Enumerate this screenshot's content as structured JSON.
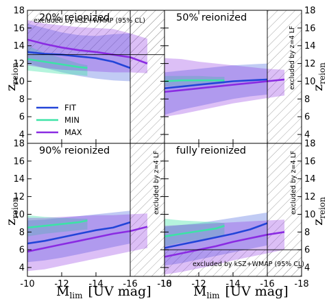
{
  "colors": {
    "FIT": "#2244d8",
    "MIN": "#3ce3a6",
    "MAX": "#8a2be2"
  },
  "axes": {
    "xlabel_main": "M",
    "xlabel_sub": "lim",
    "xlabel_unit": "[UV mag]",
    "ylabel_main": "z",
    "ylabel_sub": "reion",
    "xlim": [
      -10,
      -18
    ],
    "ylim": [
      3,
      18
    ],
    "xticks": [
      -10,
      -12,
      -14,
      -16,
      -18
    ],
    "yticks": [
      4,
      6,
      8,
      10,
      12,
      14,
      16,
      18
    ]
  },
  "legend": {
    "entries": [
      "FIT",
      "MIN",
      "MAX"
    ]
  },
  "chart_data": [
    {
      "type": "area",
      "title": "20% reionized",
      "annotations": [
        "excluded by kSZ+WMAP (95% CL)"
      ],
      "excluded": {
        "hline_z": 13.0,
        "hatch_above_z": 13.0,
        "vline_mlim": -16.0,
        "hatch_beyond_mlim": -16.0
      },
      "series": [
        {
          "name": "FIT",
          "x": [
            -10,
            -11,
            -12,
            -13,
            -14,
            -15,
            -16
          ],
          "y": [
            13.3,
            13.1,
            13.0,
            12.8,
            12.6,
            12.2,
            11.5
          ],
          "band_outer": {
            "upper": [
              16.5,
              16.0,
              15.5,
              15.2,
              15.1,
              15.3,
              15.4
            ],
            "lower": [
              12.0,
              11.5,
              11.0,
              10.6,
              10.3,
              10.1,
              10.0
            ]
          }
        },
        {
          "name": "MIN",
          "x": [
            -10,
            -11,
            -12,
            -13,
            -13.5
          ],
          "y": [
            12.5,
            12.2,
            11.9,
            11.6,
            11.5
          ],
          "band_outer": {
            "upper": [
              14.0,
              13.2,
              12.6,
              12.0,
              11.8
            ],
            "lower": [
              11.2,
              11.0,
              10.8,
              10.7,
              10.6
            ]
          }
        },
        {
          "name": "MAX",
          "x": [
            -10,
            -11,
            -12,
            -13,
            -14,
            -15,
            -16,
            -17
          ],
          "y": [
            14.7,
            14.2,
            13.8,
            13.5,
            13.3,
            13.0,
            12.7,
            12.0
          ],
          "band_outer": {
            "upper": [
              16.9,
              16.5,
              16.3,
              16.1,
              16.0,
              15.9,
              15.4,
              14.8
            ],
            "lower": [
              11.8,
              11.5,
              11.3,
              11.2,
              11.1,
              11.0,
              11.0,
              10.9
            ]
          }
        }
      ]
    },
    {
      "type": "area",
      "title": "50% reionized",
      "annotations": [
        "excluded by z=4 LF"
      ],
      "excluded": {
        "vline_mlim": -16.0,
        "hatch_beyond_mlim": -16.0
      },
      "series": [
        {
          "name": "FIT",
          "x": [
            -10,
            -11,
            -12,
            -13,
            -14,
            -15,
            -16
          ],
          "y": [
            9.2,
            9.4,
            9.6,
            9.8,
            10.0,
            10.1,
            10.2
          ],
          "band_outer": {
            "upper": [
              11.0,
              11.2,
              11.4,
              11.6,
              11.8,
              11.9,
              12.0
            ],
            "lower": [
              6.2,
              6.8,
              7.2,
              7.6,
              8.0,
              8.3,
              8.5
            ]
          }
        },
        {
          "name": "MIN",
          "x": [
            -10,
            -11,
            -12,
            -13,
            -13.5
          ],
          "y": [
            10.0,
            10.1,
            10.1,
            10.1,
            10.1
          ],
          "band_outer": {
            "upper": [
              10.6,
              10.6,
              10.6,
              10.5,
              10.5
            ],
            "lower": [
              9.4,
              9.5,
              9.6,
              9.7,
              9.7
            ]
          }
        },
        {
          "name": "MAX",
          "x": [
            -10,
            -11,
            -12,
            -13,
            -14,
            -15,
            -16,
            -17
          ],
          "y": [
            8.8,
            9.0,
            9.2,
            9.4,
            9.6,
            9.8,
            10.0,
            10.2
          ],
          "band_outer": {
            "upper": [
              12.6,
              12.5,
              12.2,
              12.0,
              11.8,
              11.6,
              11.4,
              11.3
            ],
            "lower": [
              6.0,
              6.3,
              6.7,
              7.1,
              7.5,
              7.8,
              8.1,
              8.4
            ]
          }
        }
      ]
    },
    {
      "type": "area",
      "title": "90% reionized",
      "annotations": [
        "excluded by z=4 LF"
      ],
      "excluded": {
        "vline_mlim": -16.0,
        "hatch_beyond_mlim": -16.0
      },
      "series": [
        {
          "name": "FIT",
          "x": [
            -10,
            -11,
            -12,
            -13,
            -14,
            -15,
            -16
          ],
          "y": [
            6.7,
            7.0,
            7.4,
            7.8,
            8.2,
            8.5,
            9.1
          ],
          "band_outer": {
            "upper": [
              9.3,
              9.4,
              9.6,
              9.8,
              10.0,
              10.2,
              10.4
            ],
            "lower": [
              4.6,
              4.8,
              5.1,
              5.5,
              5.9,
              6.3,
              6.7
            ]
          }
        },
        {
          "name": "MIN",
          "x": [
            -10,
            -11,
            -12,
            -13,
            -13.5
          ],
          "y": [
            8.5,
            8.7,
            8.9,
            9.1,
            9.3
          ],
          "band_outer": {
            "upper": [
              9.9,
              9.7,
              9.6,
              9.5,
              9.5
            ],
            "lower": [
              7.5,
              7.8,
              8.0,
              8.2,
              8.3
            ]
          }
        },
        {
          "name": "MAX",
          "x": [
            -10,
            -11,
            -12,
            -13,
            -14,
            -15,
            -16,
            -17
          ],
          "y": [
            5.8,
            6.2,
            6.6,
            7.0,
            7.4,
            7.8,
            8.1,
            8.6
          ],
          "band_outer": {
            "upper": [
              9.6,
              9.6,
              9.7,
              9.8,
              9.9,
              9.9,
              10.0,
              10.1
            ],
            "lower": [
              3.6,
              3.8,
              4.2,
              4.6,
              5.0,
              5.4,
              5.8,
              6.2
            ]
          }
        }
      ]
    },
    {
      "type": "area",
      "title": "fully reionized",
      "annotations": [
        "excluded by z=4 LF",
        "excluded by kSZ+WMAP (95% CL)"
      ],
      "excluded": {
        "hline_z": 6.0,
        "hatch_below_z": 6.0,
        "vline_mlim": -16.0,
        "hatch_beyond_mlim": -16.0
      },
      "series": [
        {
          "name": "FIT",
          "x": [
            -10,
            -11,
            -12,
            -13,
            -14,
            -15,
            -16
          ],
          "y": [
            6.2,
            6.6,
            7.0,
            7.4,
            7.8,
            8.3,
            9.0
          ],
          "band_outer": {
            "upper": [
              8.6,
              8.8,
              9.0,
              9.3,
              9.6,
              9.9,
              10.2
            ],
            "lower": [
              4.2,
              4.5,
              4.9,
              5.3,
              5.7,
              6.1,
              6.5
            ]
          }
        },
        {
          "name": "MIN",
          "x": [
            -10,
            -11,
            -12,
            -13,
            -13.5
          ],
          "y": [
            7.5,
            7.8,
            8.1,
            8.4,
            8.7
          ],
          "band_outer": {
            "upper": [
              9.5,
              9.3,
              9.2,
              9.1,
              9.0
            ],
            "lower": [
              6.4,
              6.8,
              7.1,
              7.4,
              7.6
            ]
          }
        },
        {
          "name": "MAX",
          "x": [
            -10,
            -11,
            -12,
            -13,
            -14,
            -15,
            -16,
            -17
          ],
          "y": [
            5.2,
            5.6,
            6.0,
            6.4,
            6.9,
            7.3,
            7.7,
            8.0
          ],
          "band_outer": {
            "upper": [
              8.7,
              8.8,
              8.9,
              9.0,
              9.1,
              9.2,
              9.3,
              9.4
            ],
            "lower": [
              3.2,
              3.5,
              3.9,
              4.3,
              4.8,
              5.2,
              5.6,
              6.0
            ]
          }
        }
      ]
    }
  ]
}
